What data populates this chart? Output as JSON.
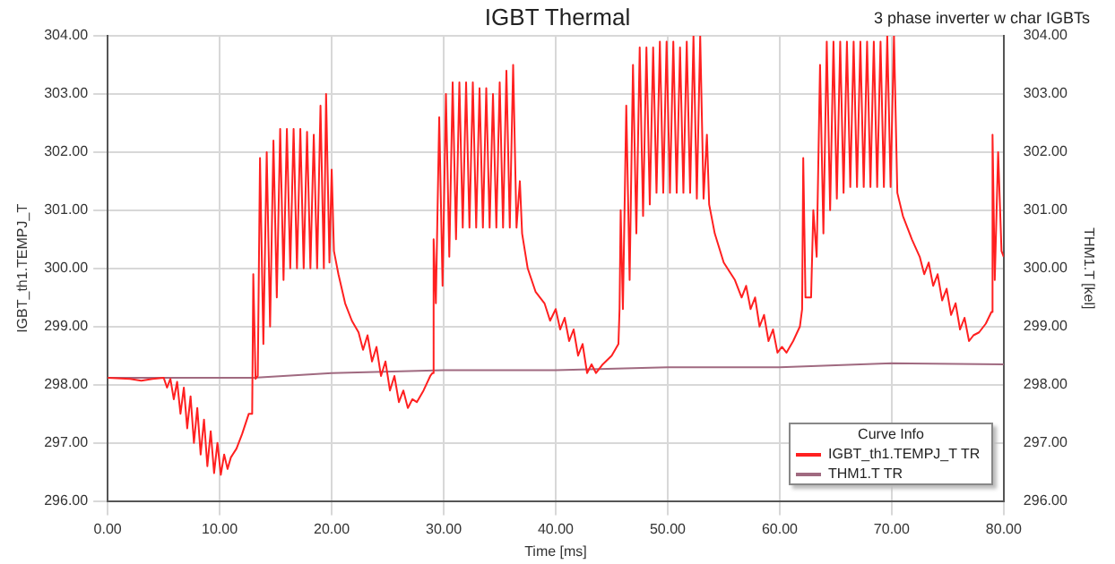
{
  "chart_data": {
    "type": "line",
    "title": "IGBT Thermal",
    "subtitle": "3 phase inverter w char IGBTs",
    "xlabel": "Time [ms]",
    "ylabel": "IGBT_th1.TEMPJ_T",
    "y2label": "THM1.T [kel]",
    "legend_title": "Curve Info",
    "legend": "bottom right",
    "grid": true,
    "marker": "none",
    "line_style": "solid",
    "xlim": [
      0,
      80
    ],
    "xticks": [
      {
        "value": 0,
        "label": "0.00"
      },
      {
        "value": 10,
        "label": "10.00"
      },
      {
        "value": 20,
        "label": "20.00"
      },
      {
        "value": 30,
        "label": "30.00"
      },
      {
        "value": 40,
        "label": "40.00"
      },
      {
        "value": 50,
        "label": "50.00"
      },
      {
        "value": 60,
        "label": "60.00"
      },
      {
        "value": 70,
        "label": "70.00"
      },
      {
        "value": 80,
        "label": "80.00"
      }
    ],
    "ylim": [
      296,
      304
    ],
    "yticks": [
      {
        "value": 296,
        "label": "296.00"
      },
      {
        "value": 297,
        "label": "297.00"
      },
      {
        "value": 298,
        "label": "298.00"
      },
      {
        "value": 299,
        "label": "299.00"
      },
      {
        "value": 300,
        "label": "300.00"
      },
      {
        "value": 301,
        "label": "301.00"
      },
      {
        "value": 302,
        "label": "302.00"
      },
      {
        "value": 303,
        "label": "303.00"
      },
      {
        "value": 304,
        "label": "304.00"
      }
    ],
    "y2lim": [
      296,
      304
    ],
    "y2ticks": [
      {
        "value": 296,
        "label": "296.00"
      },
      {
        "value": 297,
        "label": "297.00"
      },
      {
        "value": 298,
        "label": "298.00"
      },
      {
        "value": 299,
        "label": "299.00"
      },
      {
        "value": 300,
        "label": "300.00"
      },
      {
        "value": 301,
        "label": "301.00"
      },
      {
        "value": 302,
        "label": "302.00"
      },
      {
        "value": 303,
        "label": "303.00"
      },
      {
        "value": 304,
        "label": "304.00"
      }
    ],
    "series": [
      {
        "name": "IGBT_th1.TEMPJ_T TR",
        "color": "#ff2020",
        "x": [
          0,
          2,
          3,
          4,
          5,
          5.3,
          5.6,
          5.9,
          6.2,
          6.5,
          6.8,
          7.1,
          7.4,
          7.7,
          8.0,
          8.3,
          8.6,
          8.9,
          9.2,
          9.5,
          9.8,
          10.1,
          10.4,
          10.7,
          11.0,
          11.5,
          12.0,
          12.6,
          12.9,
          13.0,
          13.2,
          13.4,
          13.6,
          13.9,
          14.2,
          14.5,
          14.8,
          15.1,
          15.4,
          15.7,
          16.0,
          16.3,
          16.6,
          16.9,
          17.2,
          17.5,
          17.8,
          18.1,
          18.4,
          18.7,
          19.0,
          19.3,
          19.5,
          19.8,
          20.0,
          20.2,
          20.6,
          21.2,
          21.8,
          22.4,
          22.8,
          23.2,
          23.6,
          24.0,
          24.4,
          24.8,
          25.2,
          25.6,
          26.0,
          26.4,
          26.8,
          27.2,
          27.6,
          28.2,
          28.8,
          29.0,
          29.1,
          29.3,
          29.6,
          29.9,
          30.2,
          30.5,
          30.8,
          31.1,
          31.4,
          31.7,
          32.0,
          32.3,
          32.6,
          32.9,
          33.2,
          33.5,
          33.8,
          34.1,
          34.4,
          34.7,
          35.0,
          35.3,
          35.6,
          35.9,
          36.2,
          36.5,
          36.8,
          37.0,
          37.5,
          38.2,
          39.0,
          39.5,
          40.0,
          40.4,
          40.8,
          41.2,
          41.6,
          42.0,
          42.4,
          42.8,
          43.2,
          43.6,
          44.2,
          45.0,
          45.6,
          45.7,
          45.8,
          46.0,
          46.3,
          46.6,
          46.9,
          47.2,
          47.5,
          47.8,
          48.1,
          48.4,
          48.7,
          49.0,
          49.3,
          49.6,
          49.9,
          50.2,
          50.5,
          50.8,
          51.1,
          51.4,
          51.7,
          52.0,
          52.3,
          52.6,
          52.9,
          53.2,
          53.5,
          53.7,
          54.2,
          55.0,
          56.0,
          56.6,
          57.0,
          57.4,
          57.8,
          58.2,
          58.6,
          59.0,
          59.4,
          59.8,
          60.2,
          60.6,
          61.2,
          61.8,
          62.0,
          62.1,
          62.3,
          62.8,
          63.0,
          63.3,
          63.6,
          63.9,
          64.2,
          64.5,
          64.8,
          65.1,
          65.4,
          65.7,
          66.0,
          66.3,
          66.6,
          66.9,
          67.2,
          67.5,
          67.8,
          68.1,
          68.4,
          68.7,
          69.0,
          69.3,
          69.6,
          69.9,
          70.2,
          70.5,
          71.0,
          71.8,
          72.5,
          72.9,
          73.3,
          73.7,
          74.1,
          74.5,
          74.9,
          75.3,
          75.7,
          76.1,
          76.5,
          76.9,
          77.3,
          77.8,
          78.4,
          78.9,
          79.0,
          79.2,
          79.5,
          79.8,
          80.0
        ],
        "values": [
          298.12,
          298.1,
          298.07,
          298.1,
          298.12,
          297.95,
          298.1,
          297.75,
          298.05,
          297.5,
          297.95,
          297.25,
          297.8,
          297.0,
          297.6,
          296.8,
          297.4,
          296.6,
          297.2,
          296.48,
          297.0,
          296.45,
          296.8,
          296.55,
          296.75,
          296.9,
          297.15,
          297.5,
          297.5,
          299.9,
          298.1,
          298.15,
          301.9,
          298.7,
          302.0,
          299.0,
          302.2,
          299.5,
          302.4,
          299.8,
          302.4,
          300.0,
          302.4,
          300.0,
          302.4,
          300.0,
          302.35,
          300.0,
          302.3,
          300.0,
          302.8,
          300.0,
          303.0,
          300.1,
          301.7,
          300.3,
          299.9,
          299.4,
          299.1,
          298.9,
          298.6,
          298.85,
          298.4,
          298.65,
          298.15,
          298.4,
          297.9,
          298.15,
          297.7,
          297.9,
          297.6,
          297.75,
          297.7,
          297.9,
          298.15,
          298.2,
          300.5,
          299.4,
          302.6,
          299.7,
          303.0,
          300.2,
          303.2,
          300.5,
          303.2,
          300.7,
          303.2,
          300.7,
          303.2,
          300.7,
          303.1,
          300.7,
          303.1,
          300.7,
          303.0,
          300.7,
          303.2,
          300.7,
          303.4,
          300.7,
          303.5,
          300.7,
          301.5,
          300.6,
          300.0,
          299.6,
          299.4,
          299.1,
          299.3,
          298.95,
          299.15,
          298.75,
          298.95,
          298.5,
          298.7,
          298.2,
          298.35,
          298.2,
          298.35,
          298.5,
          298.7,
          299.3,
          301.0,
          299.3,
          302.8,
          299.8,
          303.5,
          300.6,
          303.8,
          300.9,
          303.8,
          301.1,
          303.8,
          301.3,
          303.9,
          301.3,
          303.9,
          301.3,
          303.9,
          301.3,
          303.8,
          301.3,
          303.9,
          301.3,
          304.0,
          301.2,
          304.0,
          301.2,
          302.3,
          301.1,
          300.6,
          300.1,
          299.8,
          299.5,
          299.7,
          299.3,
          299.5,
          299.0,
          299.2,
          298.75,
          298.95,
          298.55,
          298.65,
          298.55,
          298.75,
          299.0,
          299.3,
          301.9,
          299.5,
          299.5,
          301.0,
          300.2,
          303.5,
          300.6,
          303.9,
          301.0,
          303.9,
          301.2,
          303.9,
          301.3,
          303.9,
          301.4,
          303.9,
          301.4,
          303.9,
          301.4,
          303.9,
          301.4,
          303.9,
          301.4,
          303.9,
          301.4,
          304.0,
          301.4,
          304.0,
          301.3,
          300.9,
          300.5,
          300.2,
          299.9,
          300.1,
          299.7,
          299.9,
          299.45,
          299.65,
          299.2,
          299.4,
          298.95,
          299.15,
          298.75,
          298.85,
          298.9,
          299.05,
          299.25,
          302.3,
          299.8,
          302.0,
          300.3,
          300.2
        ]
      },
      {
        "name": "THM1.T TR",
        "color": "#a06a80",
        "axis": "y2",
        "x": [
          0,
          13,
          20,
          30,
          40,
          50,
          60,
          70,
          80
        ],
        "values": [
          298.12,
          298.12,
          298.2,
          298.25,
          298.25,
          298.3,
          298.3,
          298.37,
          298.35
        ]
      }
    ]
  }
}
